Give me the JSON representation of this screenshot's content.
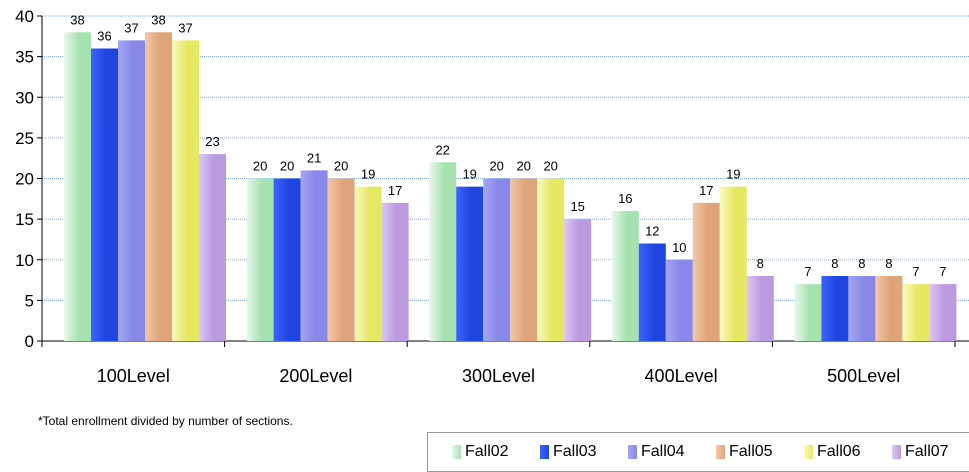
{
  "chart_data": {
    "type": "bar",
    "categories": [
      "100Level",
      "200Level",
      "300Level",
      "400Level",
      "500Level"
    ],
    "series": [
      {
        "name": "Fall02",
        "values": [
          38,
          20,
          22,
          16,
          7
        ],
        "color": "#a6e2b0",
        "color_light": "#e8f8ec"
      },
      {
        "name": "Fall03",
        "values": [
          36,
          20,
          19,
          12,
          8
        ],
        "color": "#1f45e0",
        "color_light": "#3b64ff"
      },
      {
        "name": "Fall04",
        "values": [
          37,
          21,
          20,
          10,
          8
        ],
        "color": "#8888e8",
        "color_light": "#a6a6f4"
      },
      {
        "name": "Fall05",
        "values": [
          38,
          20,
          20,
          17,
          8
        ],
        "color": "#e0a47a",
        "color_light": "#f2c8a8"
      },
      {
        "name": "Fall06",
        "values": [
          37,
          19,
          20,
          19,
          7
        ],
        "color": "#e6e864",
        "color_light": "#fafac0"
      },
      {
        "name": "Fall07",
        "values": [
          23,
          17,
          15,
          8,
          7
        ],
        "color": "#bb9ae0",
        "color_light": "#dac8f2"
      }
    ],
    "ylim": [
      0,
      40
    ],
    "yticks": [
      0,
      5,
      10,
      15,
      20,
      25,
      30,
      35,
      40
    ],
    "grid": true,
    "data_labels": true,
    "legend_position": "bottom-right"
  },
  "footnote": "*Total enrollment divided by number of sections."
}
